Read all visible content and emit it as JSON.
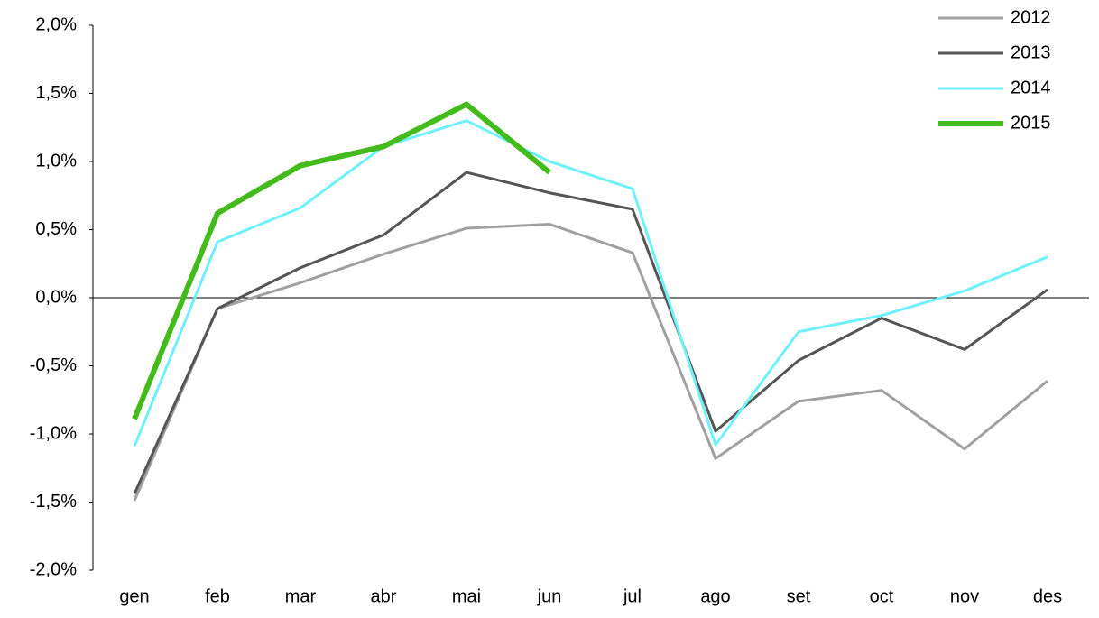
{
  "chart_data": {
    "type": "line",
    "categories": [
      "gen",
      "feb",
      "mar",
      "abr",
      "mai",
      "jun",
      "jul",
      "ago",
      "set",
      "oct",
      "nov",
      "des"
    ],
    "series": [
      {
        "name": "2012",
        "color": "#a0a0a0",
        "line_width": 3,
        "values": [
          -1.49,
          -0.08,
          0.11,
          0.32,
          0.51,
          0.54,
          0.33,
          -1.18,
          -0.76,
          -0.68,
          -1.11,
          -0.61
        ]
      },
      {
        "name": "2013",
        "color": "#555555",
        "line_width": 3,
        "values": [
          -1.44,
          -0.08,
          0.22,
          0.46,
          0.92,
          0.77,
          0.65,
          -0.98,
          -0.46,
          -0.15,
          -0.38,
          0.06
        ]
      },
      {
        "name": "2014",
        "color": "#70f0fb",
        "line_width": 3,
        "values": [
          -1.09,
          0.41,
          0.66,
          1.11,
          1.3,
          1.0,
          0.8,
          -1.08,
          -0.25,
          -0.13,
          0.05,
          0.3
        ]
      },
      {
        "name": "2015",
        "color": "#44bb1c",
        "line_width": 6,
        "values": [
          -0.89,
          0.62,
          0.97,
          1.11,
          1.42,
          0.92,
          null,
          null,
          null,
          null,
          null,
          null
        ]
      }
    ],
    "ylim": [
      -2,
      2
    ],
    "yticks": [
      {
        "value": -2,
        "label": "-2,0%"
      },
      {
        "value": -1.5,
        "label": "-1,5%"
      },
      {
        "value": -1,
        "label": "-1,0%"
      },
      {
        "value": -0.5,
        "label": "-0,5%"
      },
      {
        "value": 0,
        "label": "0,0%"
      },
      {
        "value": 0.5,
        "label": "0,5%"
      },
      {
        "value": 1,
        "label": "1,0%"
      },
      {
        "value": 1.5,
        "label": "1,5%"
      },
      {
        "value": 2,
        "label": "2,0%"
      }
    ],
    "grid": false,
    "legend": "top-right"
  }
}
